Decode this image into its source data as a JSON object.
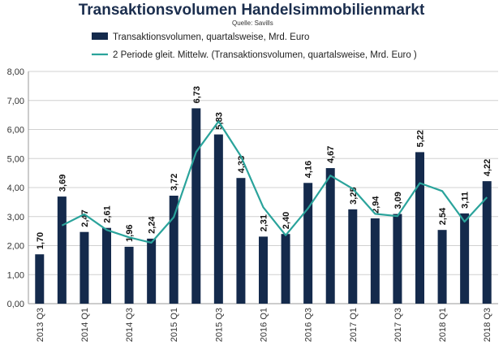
{
  "title": "Transaktionsvolumen Handelsimmobilienmarkt",
  "source": "Quelle: Savills",
  "colors": {
    "bar": "#142a4c",
    "line": "#2aa39b",
    "grid": "#d0d0d0"
  },
  "chart_data": {
    "type": "bar",
    "title": "Transaktionsvolumen Handelsimmobilienmarkt",
    "ylim": [
      0,
      8
    ],
    "yticks": [
      "0,00",
      "1,00",
      "2,00",
      "3,00",
      "4,00",
      "5,00",
      "6,00",
      "7,00",
      "8,00"
    ],
    "grid": true,
    "legend_position": "top",
    "x_tick_labels": [
      "2013 Q3",
      "2014 Q1",
      "2014 Q3",
      "2015 Q1",
      "2015 Q3",
      "2016 Q1",
      "2016 Q3",
      "2017 Q1",
      "2017 Q3",
      "2018 Q1",
      "2018 Q3"
    ],
    "series": [
      {
        "name": "Transaktionsvolumen, quartalsweise, Mrd. Euro",
        "kind": "bar",
        "values": [
          1.7,
          3.69,
          2.47,
          2.61,
          1.96,
          2.24,
          3.72,
          6.73,
          5.83,
          4.33,
          2.31,
          2.4,
          4.16,
          4.67,
          3.25,
          2.94,
          3.09,
          5.22,
          2.54,
          3.11,
          4.22
        ],
        "labels": [
          "1,70",
          "3,69",
          "2,47",
          "2,61",
          "1,96",
          "2,24",
          "3,72",
          "6,73",
          "5,83",
          "4,33",
          "2,31",
          "2,40",
          "4,16",
          "4,67",
          "3,25",
          "2,94",
          "3,09",
          "5,22",
          "2,54",
          "3,11",
          "4,22"
        ]
      },
      {
        "name": "2 Periode gleit. Mittelw. (Transaktionsvolumen, quartalsweise, Mrd. Euro )",
        "kind": "line",
        "values": [
          null,
          2.695,
          3.08,
          2.54,
          2.285,
          2.1,
          2.98,
          5.225,
          6.28,
          5.08,
          3.32,
          2.355,
          3.28,
          4.415,
          3.96,
          3.095,
          3.015,
          4.155,
          3.88,
          2.825,
          3.665
        ]
      }
    ]
  }
}
